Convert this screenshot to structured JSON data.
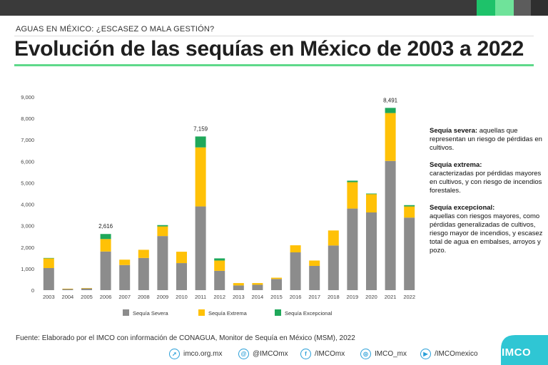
{
  "header": {
    "subtitle": "AGUAS EN MÉXICO: ¿ESCASEZ O MALA GESTIÓN?",
    "title": "Evolución de las sequías en México de 2003 a 2022"
  },
  "chart_data": {
    "type": "bar",
    "stacked": true,
    "categories": [
      "2003",
      "2004",
      "2005",
      "2006",
      "2007",
      "2008",
      "2009",
      "2010",
      "2011",
      "2012",
      "2013",
      "2014",
      "2015",
      "2016",
      "2017",
      "2018",
      "2019",
      "2020",
      "2021",
      "2022"
    ],
    "series": [
      {
        "name": "Sequía Severa",
        "color": "#8c8c8c",
        "values": [
          1030,
          50,
          80,
          1800,
          1170,
          1500,
          2520,
          1260,
          3900,
          900,
          220,
          250,
          520,
          1760,
          1130,
          2080,
          3800,
          3620,
          6020,
          3380
        ]
      },
      {
        "name": "Sequía Extrema",
        "color": "#ffc107",
        "values": [
          450,
          20,
          20,
          580,
          250,
          380,
          450,
          530,
          2750,
          480,
          110,
          80,
          60,
          330,
          250,
          700,
          1230,
          850,
          2230,
          520
        ]
      },
      {
        "name": "Sequía Excepcional",
        "color": "#1fa85a",
        "values": [
          20,
          0,
          0,
          236,
          0,
          0,
          60,
          0,
          509,
          100,
          0,
          0,
          0,
          0,
          0,
          0,
          70,
          30,
          241,
          60
        ]
      }
    ],
    "data_labels": [
      {
        "category": "2006",
        "text": "2,616"
      },
      {
        "category": "2011",
        "text": "7,159"
      },
      {
        "category": "2021",
        "text": "8,491"
      }
    ],
    "yticks": [
      "0",
      "1,000",
      "2,000",
      "3,000",
      "4,000",
      "5,000",
      "6,000",
      "7,000",
      "8,000",
      "9,000"
    ],
    "ylim": [
      0,
      9000
    ],
    "grid": false,
    "legend_position": "bottom"
  },
  "notes": [
    {
      "term": "Sequía severa:",
      "text": " aquellas que representan un riesgo de pérdidas en cultivos."
    },
    {
      "term": "Sequía extrema:",
      "text": " caracterizadas por pérdidas mayores en cultivos, y con riesgo de incendios forestales."
    },
    {
      "term": "Sequía excepcional:",
      "text": " aquellas con riesgos mayores, como pérdidas generalizadas de cultivos, riesgo mayor de incendios, y escasez total de agua en embalses, arroyos y pozo."
    }
  ],
  "source": "Fuente: Elaborado por el IMCO con información de CONAGUA, Monitor de Sequía en México (MSM), 2022",
  "footer": {
    "links": [
      {
        "icon": "web-icon",
        "glyph": "➚",
        "label": "imco.org.mx"
      },
      {
        "icon": "twitter-icon",
        "glyph": "@",
        "label": "@IMCOmx"
      },
      {
        "icon": "facebook-icon",
        "glyph": "f",
        "label": "/IMCOmx"
      },
      {
        "icon": "instagram-icon",
        "glyph": "◎",
        "label": "IMCO_mx"
      },
      {
        "icon": "youtube-icon",
        "glyph": "▶",
        "label": "/IMCOmexico"
      }
    ],
    "brand": "IMCO",
    "brand_color": "#2fc6d4"
  }
}
